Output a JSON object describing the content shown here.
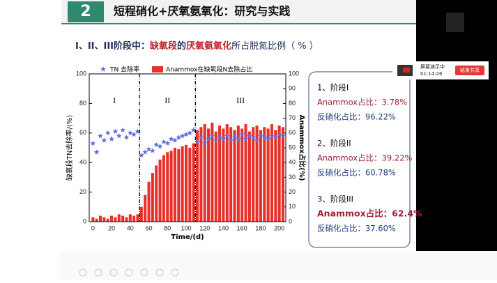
{
  "slide": {
    "number": "2",
    "title": "短程硝化+厌氧氨氧化：研究与实践",
    "subtitle": [
      "I、II、III阶段中：",
      "缺氧段",
      "的",
      "厌氧氨氧化",
      "所占脱氮比例（ %  ）"
    ],
    "summary": [
      {
        "heading": "1、阶段I",
        "anammox": "Anammox占比：3.78%",
        "denitrification": "反硝化占比：96.22%"
      },
      {
        "heading": "2、阶段II",
        "anammox": "Anammox占比：39.22%",
        "denitrification": "反硝化占比：60.78%"
      },
      {
        "heading": "3、阶段III",
        "anammox": "Anammox占比：62.4%",
        "denitrification": "反硝化占比：37.60%"
      }
    ]
  },
  "overlay": {
    "status": "屏幕演示中",
    "time": "01:14:26",
    "button": "结束共享"
  },
  "chart_data": {
    "type": "bar",
    "x_label": "Time/(d)",
    "y_label": "缺氧段TN去除率/(%)",
    "y2_label": "Anammox占比(%)",
    "xlim": [
      -4,
      207
    ],
    "xticks": [
      0,
      20,
      40,
      60,
      80,
      100,
      120,
      140,
      160,
      180,
      200
    ],
    "ylim": [
      0,
      100
    ],
    "yticks": [
      0,
      20,
      40,
      60,
      80,
      100
    ],
    "y2lim": [
      0,
      100
    ],
    "y2ticks": [
      0,
      10,
      20,
      30,
      40,
      50,
      60,
      70,
      80,
      90,
      100
    ],
    "phase_boundaries": [
      50,
      110
    ],
    "phases": [
      "I",
      "II",
      "III"
    ],
    "x": [
      0,
      4,
      8,
      12,
      16,
      20,
      24,
      28,
      32,
      36,
      40,
      44,
      48,
      52,
      56,
      60,
      64,
      68,
      72,
      76,
      80,
      84,
      88,
      92,
      96,
      100,
      104,
      108,
      112,
      116,
      120,
      124,
      128,
      132,
      136,
      140,
      144,
      148,
      152,
      156,
      160,
      164,
      168,
      172,
      176,
      180,
      184,
      188,
      192,
      196,
      200,
      204
    ],
    "series": [
      {
        "name": "Anammox在缺氧段N去除占比",
        "type": "bar",
        "axis": "y2",
        "color": "#e8302a",
        "values": [
          3,
          2,
          4,
          3,
          2,
          4,
          3,
          5,
          4,
          3,
          5,
          4,
          5,
          10,
          18,
          27,
          33,
          38,
          42,
          45,
          47,
          48,
          50,
          49,
          51,
          52,
          50,
          53,
          62,
          64,
          66,
          63,
          67,
          61,
          65,
          63,
          66,
          64,
          62,
          65,
          63,
          66,
          61,
          64,
          65,
          62,
          64,
          63,
          66,
          62,
          65,
          64
        ]
      },
      {
        "name": "TN 去除率",
        "type": "scatter",
        "color": "#5d6fe0",
        "values": [
          53,
          47,
          58,
          55,
          60,
          56,
          61,
          58,
          62,
          57,
          60,
          59,
          61,
          45,
          47,
          49,
          48,
          52,
          51,
          54,
          53,
          56,
          55,
          57,
          58,
          59,
          60,
          62,
          54,
          57,
          53,
          56,
          58,
          55,
          57,
          56,
          58,
          55,
          57,
          56,
          59,
          56,
          58,
          57,
          55,
          58,
          57,
          56,
          58,
          57,
          59,
          58
        ]
      }
    ]
  }
}
